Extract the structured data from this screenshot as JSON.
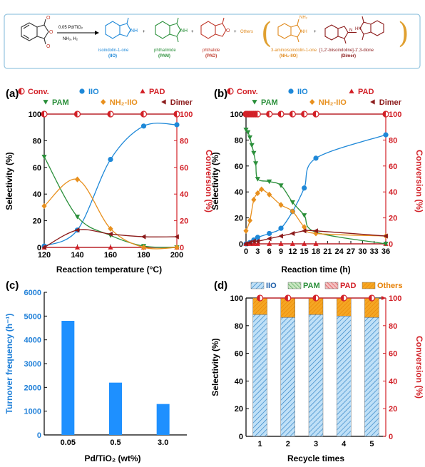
{
  "scheme": {
    "arrow_top": "0.05 Pd/TiO₂",
    "arrow_bottom": "NH₃, H₂",
    "plus": "+",
    "others": "Others",
    "products": [
      {
        "name": "isoindolin-1-one",
        "abbr": "(IIO)",
        "color": "#1e88d8"
      },
      {
        "name": "phthalimide",
        "abbr": "(PAM)",
        "color": "#2a8f3a"
      },
      {
        "name": "phthalide",
        "abbr": "(PAD)",
        "color": "#c0392b"
      },
      {
        "name": "3-aminoisoindolin-1-one",
        "abbr": "(NH₂-IIO)",
        "color": "#e08a1e"
      },
      {
        "name": "[1,2'-biisoindoline]-1',3-dione",
        "abbr": "(Dimer)",
        "color": "#8b1a1a"
      }
    ],
    "colors": {
      "reactant": "#333333",
      "bracket": "#e0a030",
      "frame": "#7fb8d8"
    }
  },
  "legend": {
    "conv": "Conv.",
    "iio": "IIO",
    "pad": "PAD",
    "pam": "PAM",
    "nh2iio": "NH₂-IIO",
    "dimer": "Dimer"
  },
  "colors": {
    "conv": "#d21f26",
    "iio": "#1e88d8",
    "pad": "#d21f26",
    "pam": "#2a8f3a",
    "nh2iio": "#e8901e",
    "dimer": "#8b1a1a",
    "bar": "#1e90ff",
    "right_axis": "#d21f26"
  },
  "chart_data": [
    {
      "panel": "(a)",
      "type": "line",
      "xlabel": "Reaction temperature (°C)",
      "ylabel": "Selectivity (%)",
      "y2label": "Conversion (%)",
      "xlim": [
        120,
        200
      ],
      "ylim": [
        0,
        100
      ],
      "y2lim": [
        0,
        100
      ],
      "xticks": [
        120,
        140,
        160,
        180,
        200
      ],
      "yticks": [
        0,
        20,
        40,
        60,
        80,
        100
      ],
      "series": [
        {
          "name": "Conv.",
          "axis": "right",
          "marker": "halfcircle",
          "x": [
            120,
            140,
            160,
            180,
            200
          ],
          "y": [
            100,
            100,
            100,
            100,
            100
          ]
        },
        {
          "name": "IIO",
          "marker": "circle",
          "x": [
            120,
            140,
            160,
            180,
            200
          ],
          "y": [
            1,
            13,
            66,
            91,
            92
          ]
        },
        {
          "name": "PAD",
          "marker": "triangle-up",
          "x": [
            120,
            140,
            160,
            180,
            200
          ],
          "y": [
            0,
            0,
            0,
            0,
            0
          ]
        },
        {
          "name": "PAM",
          "marker": "triangle-down",
          "x": [
            120,
            140,
            160,
            180,
            200
          ],
          "y": [
            68,
            23,
            9,
            1,
            0
          ]
        },
        {
          "name": "NH₂-IIO",
          "marker": "diamond",
          "x": [
            120,
            140,
            160,
            180,
            200
          ],
          "y": [
            31,
            51,
            14,
            0,
            0
          ]
        },
        {
          "name": "Dimer",
          "marker": "triangle-left",
          "x": [
            120,
            140,
            160,
            180,
            200
          ],
          "y": [
            0,
            13,
            10,
            8,
            8
          ]
        }
      ]
    },
    {
      "panel": "(b)",
      "type": "line",
      "xlabel": "Reaction time (h)",
      "ylabel": "Selectivity (%)",
      "y2label": "Conversion (%)",
      "xlim": [
        0,
        36
      ],
      "ylim": [
        0,
        100
      ],
      "y2lim": [
        0,
        100
      ],
      "xticks": [
        0,
        3,
        6,
        9,
        12,
        15,
        18,
        21,
        24,
        27,
        30,
        33,
        36
      ],
      "yticks": [
        0,
        20,
        40,
        60,
        80,
        100
      ],
      "series": [
        {
          "name": "Conv.",
          "axis": "right",
          "marker": "halfcircle",
          "x": [
            0,
            0.5,
            1,
            1.5,
            2,
            2.5,
            3,
            6,
            9,
            12,
            15,
            18,
            36
          ],
          "y": [
            100,
            100,
            100,
            100,
            100,
            100,
            100,
            100,
            100,
            100,
            100,
            100,
            100
          ]
        },
        {
          "name": "IIO",
          "marker": "circle",
          "x": [
            0,
            1,
            2,
            3,
            6,
            9,
            12,
            15,
            18,
            36
          ],
          "y": [
            0,
            1,
            3,
            5,
            8,
            12,
            25,
            43,
            66,
            84
          ]
        },
        {
          "name": "PAD",
          "marker": "triangle-up",
          "x": [
            0,
            1,
            2,
            3,
            6,
            9,
            12,
            15,
            18,
            36
          ],
          "y": [
            0,
            0,
            0,
            0,
            0,
            0,
            0,
            0,
            0,
            0
          ]
        },
        {
          "name": "PAM",
          "marker": "triangle-down",
          "x": [
            0,
            0.5,
            1,
            1.5,
            2,
            2.5,
            3,
            6,
            9,
            12,
            15,
            18,
            36
          ],
          "y": [
            88,
            86,
            82,
            76,
            70,
            62,
            50,
            48,
            45,
            32,
            22,
            9,
            0
          ]
        },
        {
          "name": "NH₂-IIO",
          "marker": "diamond",
          "x": [
            0,
            1,
            2,
            3,
            4,
            6,
            9,
            12,
            15,
            18,
            36
          ],
          "y": [
            10,
            18,
            34,
            39,
            42,
            38,
            30,
            25,
            13,
            8,
            6
          ]
        },
        {
          "name": "Dimer",
          "marker": "triangle-left",
          "x": [
            0,
            1,
            2,
            3,
            6,
            9,
            12,
            15,
            18,
            36
          ],
          "y": [
            0,
            1,
            2,
            2,
            4,
            6,
            8,
            10,
            10,
            6
          ]
        }
      ]
    },
    {
      "panel": "(c)",
      "type": "bar",
      "categories": [
        "0.05",
        "0.5",
        "3.0"
      ],
      "values": [
        4800,
        2200,
        1300
      ],
      "xlabel": "Pd/TiO₂ (wt%)",
      "ylabel": "Turnover frequency (h⁻¹)",
      "ylim": [
        0,
        6000
      ],
      "yticks": [
        0,
        1000,
        2000,
        3000,
        4000,
        5000,
        6000
      ]
    },
    {
      "panel": "(d)",
      "type": "bar",
      "stacked": true,
      "categories": [
        "1",
        "2",
        "3",
        "4",
        "5"
      ],
      "xlabel": "Recycle times",
      "ylabel": "Selectivity (%)",
      "y2label": "Conversion (%)",
      "ylim": [
        0,
        100
      ],
      "y2lim": [
        0,
        100
      ],
      "yticks": [
        0,
        20,
        40,
        60,
        80,
        100
      ],
      "y2ticks": [
        0,
        20,
        40,
        60,
        80,
        100
      ],
      "series": [
        {
          "name": "IIO",
          "values": [
            88,
            86,
            88,
            87,
            86
          ]
        },
        {
          "name": "PAM",
          "values": [
            0,
            0,
            0,
            0,
            0
          ]
        },
        {
          "name": "PAD",
          "values": [
            0,
            0,
            0,
            0,
            0
          ]
        },
        {
          "name": "Others",
          "values": [
            12,
            14,
            12,
            13,
            14
          ]
        }
      ],
      "conversion": [
        100,
        100,
        100,
        100,
        100
      ]
    }
  ]
}
